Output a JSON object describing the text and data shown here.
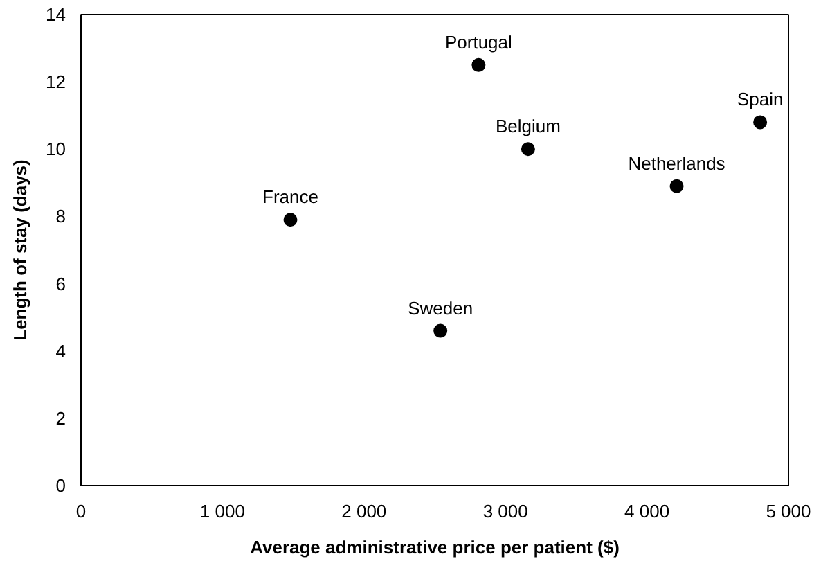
{
  "chart_data": {
    "type": "scatter",
    "xlabel": "Average administrative price per patient ($)",
    "ylabel": "Length of stay (days)",
    "xlim": [
      0,
      5000
    ],
    "xticks": [
      0,
      {
        "value": 1000,
        "label": "1 000"
      },
      {
        "value": 2000,
        "label": "2 000"
      },
      {
        "value": 3000,
        "label": "3 000"
      },
      {
        "value": 4000,
        "label": "4 000"
      },
      {
        "value": 5000,
        "label": "5 000"
      }
    ],
    "ylim": [
      0,
      14
    ],
    "yticks": [
      0,
      2,
      4,
      6,
      8,
      10,
      12,
      14
    ],
    "grid": false,
    "marker": "circle",
    "series": [
      {
        "name": "France",
        "color": "#000000",
        "x": [
          1480
        ],
        "values": [
          7.9
        ]
      },
      {
        "name": "Portugal",
        "color": "#000000",
        "x": [
          2810
        ],
        "values": [
          12.5
        ]
      },
      {
        "name": "Belgium",
        "color": "#000000",
        "x": [
          3160
        ],
        "values": [
          10.0
        ]
      },
      {
        "name": "Netherlands",
        "color": "#000000",
        "x": [
          4210
        ],
        "values": [
          8.9
        ]
      },
      {
        "name": "Spain",
        "color": "#000000",
        "x": [
          4800
        ],
        "values": [
          10.8
        ]
      },
      {
        "name": "Sweden",
        "color": "#000000",
        "x": [
          2540
        ],
        "values": [
          4.6
        ]
      }
    ]
  }
}
